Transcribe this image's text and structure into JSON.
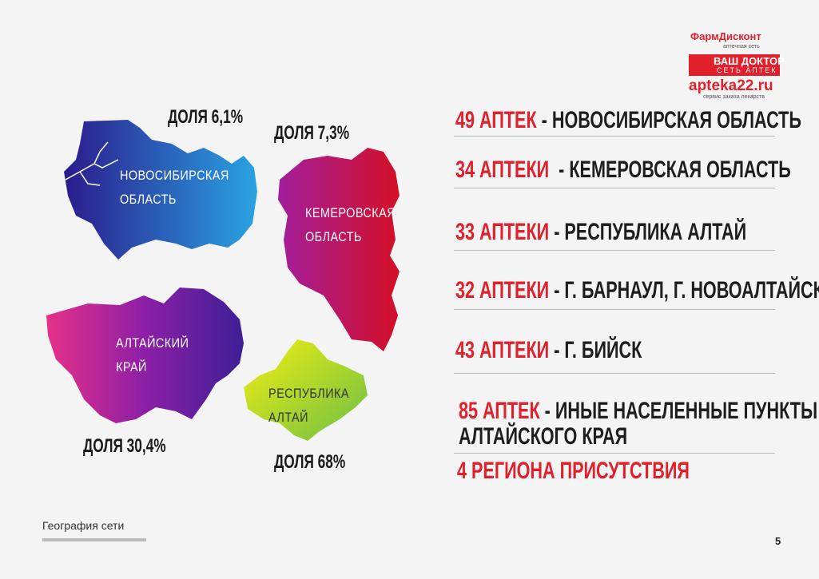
{
  "logos": {
    "farmdiscount": {
      "name": "ФармДисконт",
      "tagline": "аптечная сеть"
    },
    "vash_doktor": {
      "name": "ВАШ ДОКТОР",
      "tagline": "СЕТЬ АПТЕК"
    },
    "site": {
      "url": "apteka22.ru",
      "tagline": "сервис заказа лекарств"
    }
  },
  "regions": [
    {
      "name_lines": [
        "НОВОСИБИРСКАЯ",
        "ОБЛАСТЬ"
      ],
      "share": "ДОЛЯ 6,1%"
    },
    {
      "name_lines": [
        "КЕМЕРОВСКАЯ",
        "ОБЛАСТЬ"
      ],
      "share": "ДОЛЯ 7,3%"
    },
    {
      "name_lines": [
        "АЛТАЙСКИЙ",
        "КРАЙ"
      ],
      "share": "ДОЛЯ 30,4%"
    },
    {
      "name_lines": [
        "РЕСПУБЛИКА",
        "АЛТАЙ"
      ],
      "share": "ДОЛЯ 68%"
    }
  ],
  "list": [
    {
      "count": "49 АПТЕК",
      "text_lines": [
        "- НОВОСИБИРСКАЯ ОБЛАСТЬ"
      ]
    },
    {
      "count": "34 АПТЕКИ",
      "text_lines": [
        "- КЕМЕРОВСКАЯ ОБЛАСТЬ"
      ]
    },
    {
      "count": "33 АПТЕКИ",
      "text_lines": [
        "- РЕСПУБЛИКА АЛТАЙ"
      ]
    },
    {
      "count": "32 АПТЕКИ",
      "text_lines": [
        "- Г. БАРНАУЛ, Г. НОВОАЛТАЙСК"
      ]
    },
    {
      "count": "43 АПТЕКИ",
      "text_lines": [
        "- Г. БИЙСК"
      ]
    },
    {
      "count": "85 АПТЕК",
      "text_lines": [
        "- ИНЫЕ НАСЕЛЕННЫЕ ПУНКТЫ",
        "АЛТАЙСКОГО КРАЯ"
      ]
    }
  ],
  "summary": "4 РЕГИОНА ПРИСУТСТВИЯ",
  "footer": {
    "section": "География сети",
    "page": "5"
  }
}
